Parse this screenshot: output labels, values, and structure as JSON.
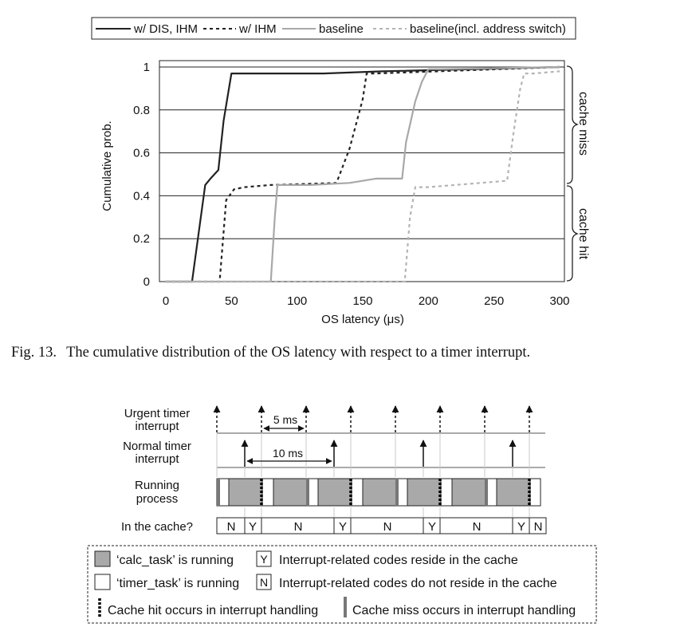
{
  "figure13": {
    "caption_number": "Fig. 13.",
    "caption_text": "The cumulative distribution of the OS latency with respect to a timer interrupt."
  },
  "chart_data": {
    "type": "line",
    "title": "",
    "xlabel": "OS latency (μs)",
    "ylabel": "Cumulative prob.",
    "xlim": [
      0,
      300
    ],
    "ylim": [
      0,
      1
    ],
    "xticks": [
      "0",
      "50",
      "100",
      "150",
      "200",
      "250",
      "300"
    ],
    "xtick_values": [
      0,
      50,
      100,
      150,
      200,
      250,
      300
    ],
    "yticks": [
      "0",
      "0.2",
      "0.4",
      "0.6",
      "0.8",
      "1"
    ],
    "ytick_values": [
      0,
      0.2,
      0.4,
      0.6,
      0.8,
      1
    ],
    "grid": "horizontal",
    "legend_placement": "top",
    "annotations": [
      {
        "text": "cache miss",
        "y_range": [
          0.45,
          1.0
        ]
      },
      {
        "text": "cache hit",
        "y_range": [
          0,
          0.45
        ]
      }
    ],
    "series": [
      {
        "name": "w/ DIS, IHM",
        "color": "#222222",
        "dash": "solid",
        "x": [
          0,
          20,
          30,
          34,
          40,
          44,
          50,
          120,
          165,
          300
        ],
        "y": [
          0,
          0,
          0.45,
          0.48,
          0.52,
          0.75,
          0.97,
          0.97,
          0.98,
          1.0
        ]
      },
      {
        "name": "w/ IHM",
        "color": "#222222",
        "dash": "dotted",
        "x": [
          0,
          41,
          46,
          52,
          60,
          80,
          130,
          140,
          150,
          153,
          160,
          300
        ],
        "y": [
          0,
          0,
          0.38,
          0.43,
          0.44,
          0.45,
          0.46,
          0.62,
          0.85,
          0.97,
          0.97,
          1.0
        ]
      },
      {
        "name": "baseline",
        "color": "#a8a8a8",
        "dash": "solid",
        "x": [
          0,
          80,
          83,
          85,
          90,
          110,
          140,
          160,
          180,
          183,
          190,
          195,
          200,
          210,
          300
        ],
        "y": [
          0,
          0,
          0.3,
          0.45,
          0.45,
          0.45,
          0.46,
          0.48,
          0.48,
          0.65,
          0.84,
          0.93,
          0.99,
          0.99,
          1.0
        ]
      },
      {
        "name": "baseline(incl. address switch)",
        "color": "#b4b4b4",
        "dash": "dotted",
        "x": [
          0,
          182,
          186,
          190,
          200,
          260,
          265,
          270,
          273,
          280,
          300
        ],
        "y": [
          0,
          0,
          0.3,
          0.44,
          0.44,
          0.47,
          0.7,
          0.9,
          0.97,
          0.97,
          0.98
        ]
      }
    ]
  },
  "timing": {
    "row_labels": {
      "urgent_line1": "Urgent timer",
      "urgent_line2": "interrupt",
      "normal_line1": "Normal timer",
      "normal_line2": "interrupt",
      "running_line1": "Running",
      "running_line2": "process",
      "cache_label": "In the cache?"
    },
    "dim_5ms": "5 ms",
    "dim_10ms": "10 ms",
    "cache_cells": [
      "N",
      "Y",
      "N",
      "Y",
      "N",
      "Y",
      "N",
      "Y",
      "N"
    ]
  },
  "legend2": {
    "calc_task": "‘calc_task’ is running",
    "timer_task": "‘timer_task’ is running",
    "y_box": "Y",
    "y_text": "Interrupt-related codes reside in the cache",
    "n_box": "N",
    "n_text": "Interrupt-related codes do not reside in the cache",
    "hit_text": "Cache hit occurs in interrupt handling",
    "miss_text": "Cache miss occurs in interrupt handling"
  }
}
